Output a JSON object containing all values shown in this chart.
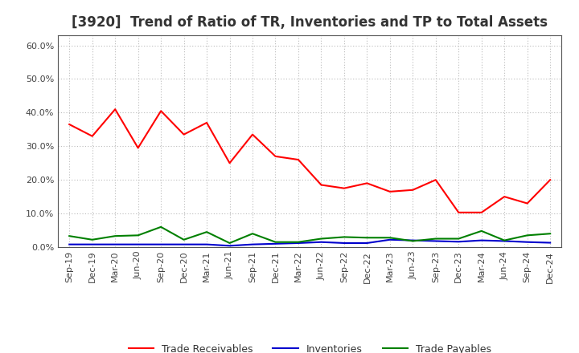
{
  "title": "[3920]  Trend of Ratio of TR, Inventories and TP to Total Assets",
  "x_labels": [
    "Sep-19",
    "Dec-19",
    "Mar-20",
    "Jun-20",
    "Sep-20",
    "Dec-20",
    "Mar-21",
    "Jun-21",
    "Sep-21",
    "Dec-21",
    "Mar-22",
    "Jun-22",
    "Sep-22",
    "Dec-22",
    "Mar-23",
    "Jun-23",
    "Sep-23",
    "Dec-23",
    "Mar-24",
    "Jun-24",
    "Sep-24",
    "Dec-24"
  ],
  "trade_receivables": [
    0.365,
    0.33,
    0.41,
    0.295,
    0.405,
    0.335,
    0.37,
    0.25,
    0.335,
    0.27,
    0.26,
    0.185,
    0.175,
    0.19,
    0.165,
    0.17,
    0.2,
    0.103,
    0.103,
    0.15,
    0.13,
    0.2
  ],
  "inventories": [
    0.008,
    0.008,
    0.008,
    0.008,
    0.008,
    0.008,
    0.008,
    0.004,
    0.008,
    0.01,
    0.012,
    0.015,
    0.012,
    0.012,
    0.022,
    0.02,
    0.018,
    0.016,
    0.02,
    0.018,
    0.015,
    0.013
  ],
  "trade_payables": [
    0.033,
    0.022,
    0.033,
    0.035,
    0.06,
    0.022,
    0.045,
    0.012,
    0.04,
    0.015,
    0.015,
    0.025,
    0.03,
    0.028,
    0.028,
    0.018,
    0.025,
    0.025,
    0.048,
    0.02,
    0.035,
    0.04
  ],
  "color_tr": "#FF0000",
  "color_inv": "#0000CD",
  "color_tp": "#008000",
  "ylim": [
    0.0,
    0.63
  ],
  "yticks": [
    0.0,
    0.1,
    0.2,
    0.3,
    0.4,
    0.5,
    0.6
  ],
  "background_color": "#FFFFFF",
  "plot_bg_color": "#FFFFFF",
  "grid_color": "#AAAAAA",
  "legend_labels": [
    "Trade Receivables",
    "Inventories",
    "Trade Payables"
  ],
  "title_fontsize": 12,
  "tick_fontsize": 8,
  "legend_fontsize": 9
}
